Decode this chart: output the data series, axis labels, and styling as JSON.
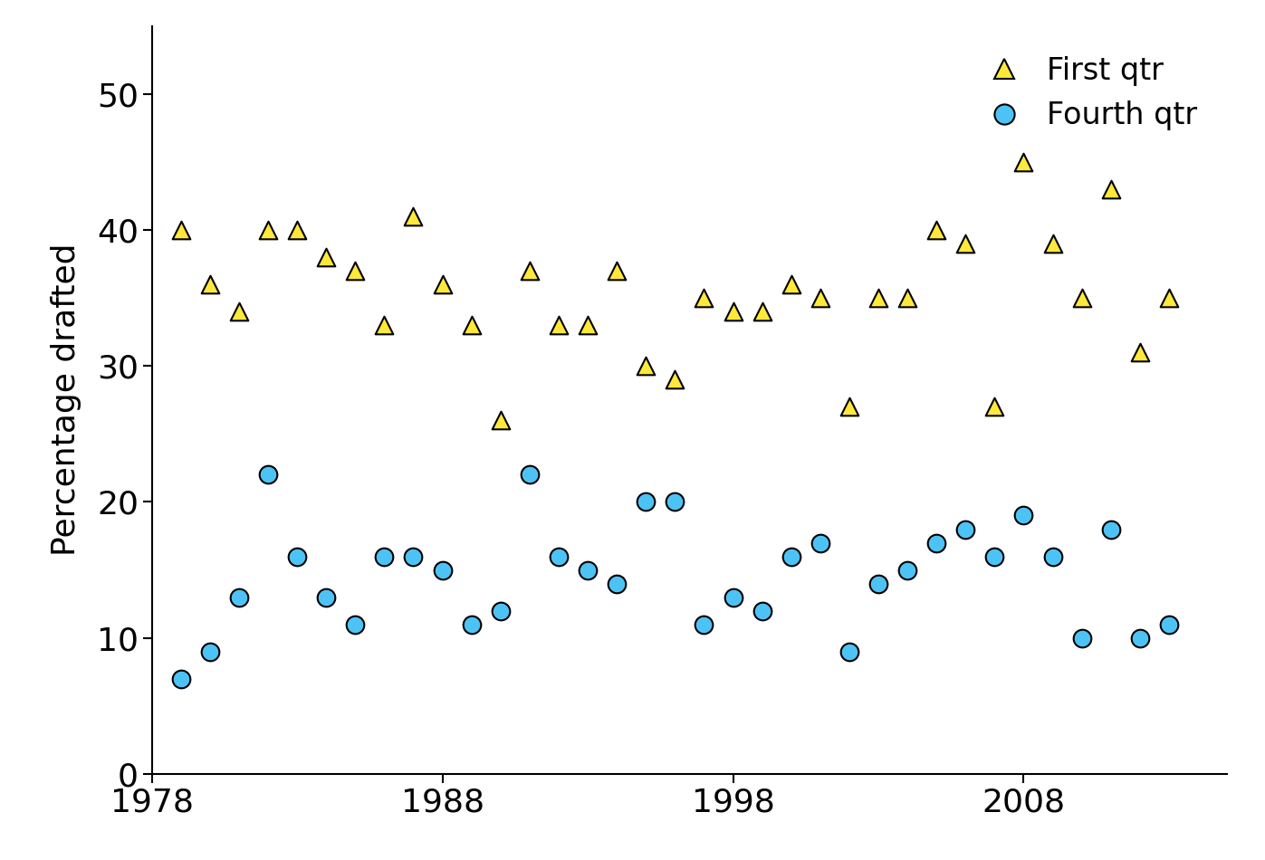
{
  "first_qtr": {
    "years": [
      1979,
      1980,
      1981,
      1982,
      1983,
      1984,
      1985,
      1986,
      1987,
      1988,
      1989,
      1990,
      1991,
      1992,
      1993,
      1994,
      1995,
      1996,
      1997,
      1998,
      1999,
      2000,
      2001,
      2002,
      2003,
      2004,
      2005,
      2006,
      2007,
      2008,
      2009,
      2010,
      2011,
      2012,
      2013
    ],
    "values": [
      40,
      36,
      34,
      40,
      40,
      38,
      37,
      33,
      41,
      36,
      33,
      26,
      37,
      33,
      33,
      37,
      30,
      29,
      35,
      34,
      34,
      36,
      35,
      27,
      35,
      35,
      40,
      39,
      27,
      45,
      39,
      35,
      43,
      31,
      35
    ]
  },
  "fourth_qtr": {
    "years": [
      1979,
      1980,
      1981,
      1982,
      1983,
      1984,
      1985,
      1986,
      1987,
      1988,
      1989,
      1990,
      1991,
      1992,
      1993,
      1994,
      1995,
      1996,
      1997,
      1998,
      1999,
      2000,
      2001,
      2002,
      2003,
      2004,
      2005,
      2006,
      2007,
      2008,
      2009,
      2010,
      2011,
      2012,
      2013
    ],
    "values": [
      7,
      9,
      13,
      22,
      16,
      13,
      11,
      16,
      16,
      15,
      11,
      12,
      22,
      16,
      15,
      14,
      20,
      20,
      11,
      13,
      12,
      16,
      17,
      9,
      14,
      15,
      17,
      18,
      16,
      19,
      16,
      10,
      18,
      10,
      11
    ]
  },
  "triangle_color": "#FFE83A",
  "circle_color": "#4DC3F5",
  "edge_color": "#000000",
  "ylabel": "Percentage drafted",
  "xlim": [
    1978,
    2015
  ],
  "ylim": [
    0,
    55
  ],
  "yticks": [
    0,
    10,
    20,
    30,
    40,
    50
  ],
  "xticks": [
    1978,
    1988,
    1998,
    2008
  ],
  "legend_first": "First qtr",
  "legend_fourth": "Fourth qtr",
  "marker_size": 200,
  "edge_width": 1.5,
  "bg_color": "#ffffff",
  "tick_fontsize": 26,
  "ylabel_fontsize": 26,
  "legend_fontsize": 24
}
